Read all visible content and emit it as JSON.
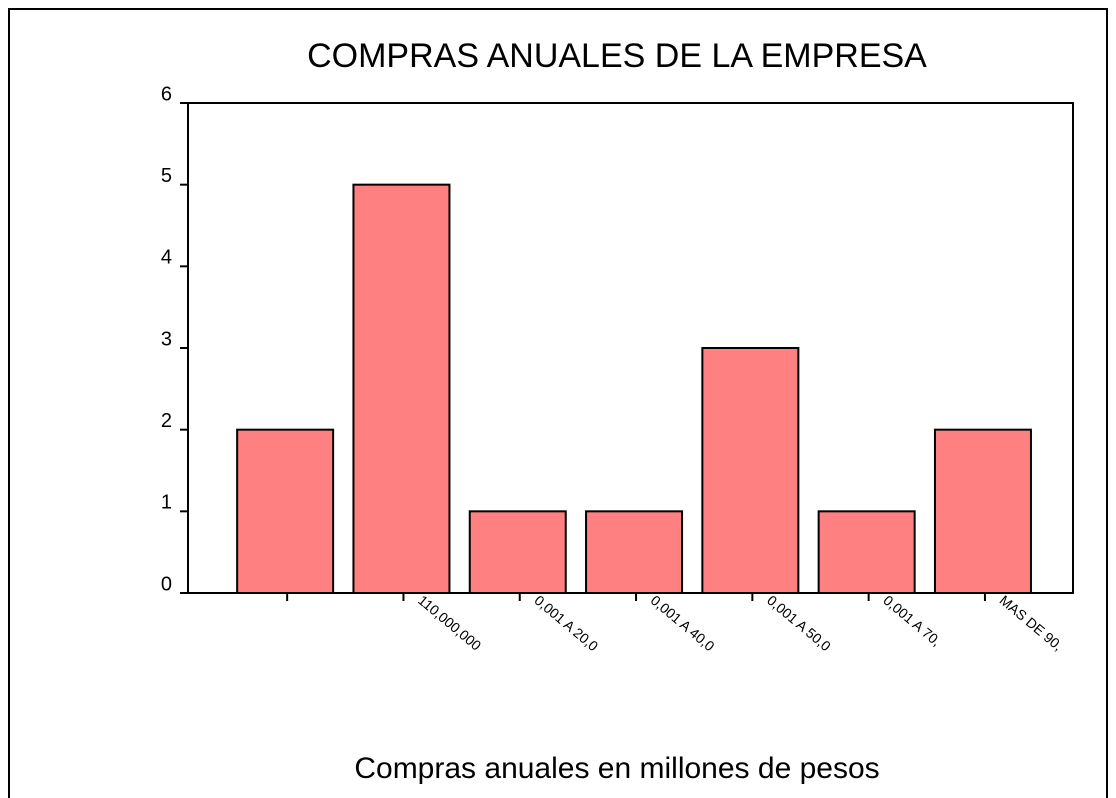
{
  "chart_data": {
    "type": "bar",
    "title": "COMPRAS ANUALES DE LA EMPRESA",
    "x_label": "Compras anuales en millones de pesos",
    "categories": [
      null,
      "110,000,000",
      "0,001 A 20,0",
      "0,001 A 40,0",
      "0,001 A 50,0",
      "0,001  A 70,",
      "MAS DE 90,"
    ],
    "values": [
      2,
      5,
      1,
      1,
      3,
      1,
      2
    ],
    "color": "#ff8080",
    "ylim": [
      0,
      6
    ],
    "yticks": [
      0,
      1,
      2,
      3,
      4,
      5,
      6
    ],
    "grid": false
  }
}
